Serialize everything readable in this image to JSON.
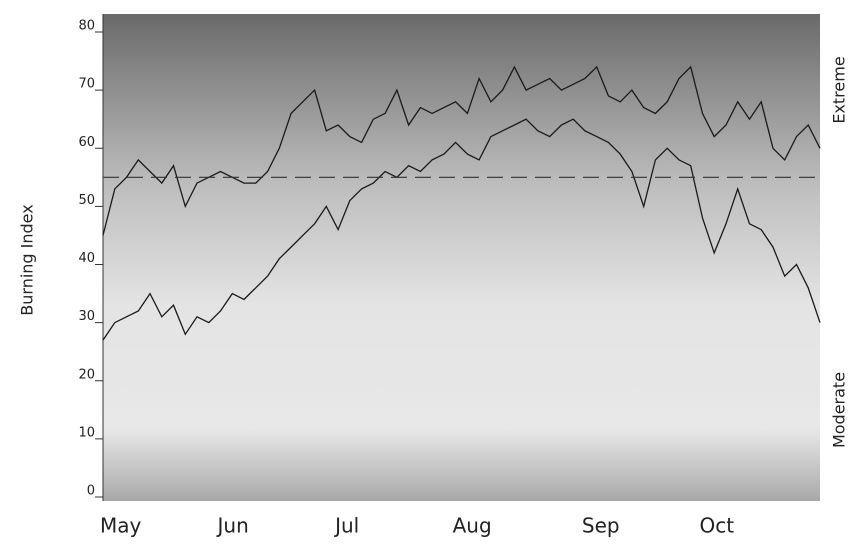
{
  "chart_data": {
    "type": "line",
    "y_label": "Burning Index",
    "annotations": [
      "Extreme",
      "Moderate"
    ],
    "categories": [
      "May",
      null,
      null,
      null,
      null,
      null,
      null,
      null,
      null,
      null,
      "Jun",
      null,
      null,
      null,
      null,
      null,
      null,
      null,
      null,
      null,
      "Jul",
      null,
      null,
      null,
      null,
      null,
      null,
      null,
      null,
      null,
      "Aug",
      null,
      null,
      null,
      null,
      null,
      null,
      null,
      null,
      null,
      null,
      "Sep",
      null,
      null,
      null,
      null,
      null,
      null,
      null,
      null,
      null,
      "Oct",
      null,
      null,
      null,
      null,
      null,
      null,
      null,
      null,
      null,
      null
    ],
    "series": [
      {
        "color": "#1a1a1a",
        "dashed": false,
        "values": [
          45,
          53,
          55,
          58,
          56,
          54,
          57,
          50,
          54,
          55,
          56,
          55,
          54,
          54,
          56,
          60,
          66,
          68,
          70,
          63,
          64,
          62,
          61,
          65,
          66,
          70,
          64,
          67,
          66,
          67,
          68,
          66,
          72,
          68,
          70,
          74,
          70,
          71,
          72,
          70,
          71,
          72,
          74,
          69,
          68,
          70,
          67,
          66,
          68,
          72,
          74,
          66,
          62,
          64,
          68,
          65,
          68,
          60,
          58,
          62,
          64,
          60
        ]
      },
      {
        "color": "#1a1a1a",
        "dashed": false,
        "values": [
          27,
          30,
          31,
          32,
          35,
          31,
          33,
          28,
          31,
          30,
          32,
          35,
          34,
          36,
          38,
          41,
          43,
          45,
          47,
          50,
          46,
          51,
          53,
          54,
          56,
          55,
          57,
          56,
          58,
          59,
          61,
          59,
          58,
          62,
          63,
          64,
          65,
          63,
          62,
          64,
          65,
          63,
          62,
          61,
          59,
          56,
          50,
          58,
          60,
          58,
          57,
          48,
          42,
          47,
          53,
          47,
          46,
          43,
          38,
          40,
          36,
          30
        ]
      },
      {
        "color": "#333333",
        "dashed": true,
        "values": [
          55,
          55,
          55,
          55,
          55,
          55,
          55,
          55,
          55,
          55,
          55,
          55,
          55,
          55,
          55,
          55,
          55,
          55,
          55,
          55,
          55,
          55,
          55,
          55,
          55,
          55,
          55,
          55,
          55,
          55,
          55,
          55,
          55,
          55,
          55,
          55,
          55,
          55,
          55,
          55,
          55,
          55,
          55,
          55,
          55,
          55,
          55,
          55,
          55,
          55,
          55,
          55,
          55,
          55,
          55,
          55,
          55,
          55,
          55,
          55,
          55,
          55
        ]
      }
    ],
    "ylim": [
      0,
      80
    ],
    "yticks": [
      0,
      10,
      20,
      30,
      40,
      50,
      60,
      70,
      80
    ]
  }
}
